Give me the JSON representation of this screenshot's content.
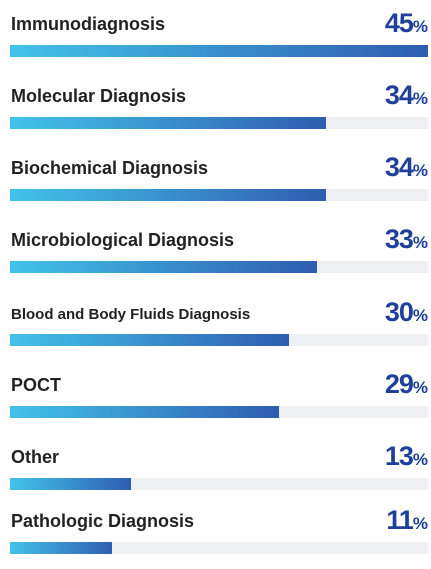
{
  "chart_data": {
    "type": "bar",
    "orientation": "horizontal",
    "categories": [
      "Immunodiagnosis",
      "Molecular Diagnosis",
      "Biochemical Diagnosis",
      "Microbiological Diagnosis",
      "Blood and Body Fluids Diagnosis",
      "POCT",
      "Other",
      "Pathologic Diagnosis"
    ],
    "values": [
      45,
      34,
      34,
      33,
      30,
      29,
      13,
      11
    ],
    "unit": "%",
    "xlim": [
      0,
      45
    ],
    "color": "#2f5db0"
  }
}
